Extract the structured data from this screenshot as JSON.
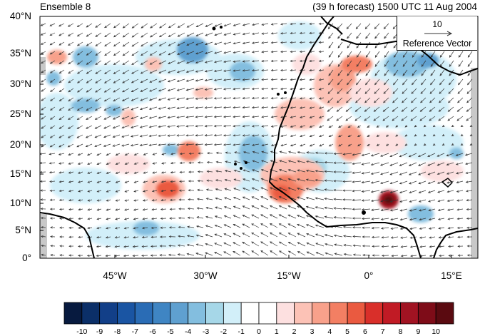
{
  "title_left": "Ensemble 8",
  "title_right": "(39 h forecast) 1500 UTC 11 Aug 2004",
  "y_ticks": [
    "40°N",
    "35°N",
    "30°N",
    "25°N",
    "20°N",
    "15°N",
    "10°N",
    "5°N",
    "0°"
  ],
  "x_ticks": [
    "45°W",
    "30°W",
    "15°W",
    "0°",
    "15°E"
  ],
  "reference_vector": {
    "value": "10",
    "label": "Reference Vector"
  },
  "colorbar": {
    "labels": [
      "-10",
      "-9",
      "-8",
      "-7",
      "-6",
      "-5",
      "-4",
      "-3",
      "-2",
      "-1",
      "0",
      "1",
      "2",
      "3",
      "4",
      "5",
      "6",
      "7",
      "8",
      "9",
      "10"
    ],
    "colors": [
      "#071a3f",
      "#0b2f68",
      "#123f88",
      "#1a55a3",
      "#2a6cb5",
      "#3f85c3",
      "#5fa0d0",
      "#83bedf",
      "#a6d7e8",
      "#d2eff9",
      "#ffffff",
      "#ffffff",
      "#fde0e0",
      "#fcc2b6",
      "#f8a18b",
      "#f37f63",
      "#ea5a40",
      "#d92f2a",
      "#c11b25",
      "#a11322",
      "#7e0c18",
      "#5a0a10"
    ]
  },
  "colors": {
    "land_coast": "#000000",
    "no_data_gray": "#c8c8c8",
    "vector": "#333333"
  }
}
